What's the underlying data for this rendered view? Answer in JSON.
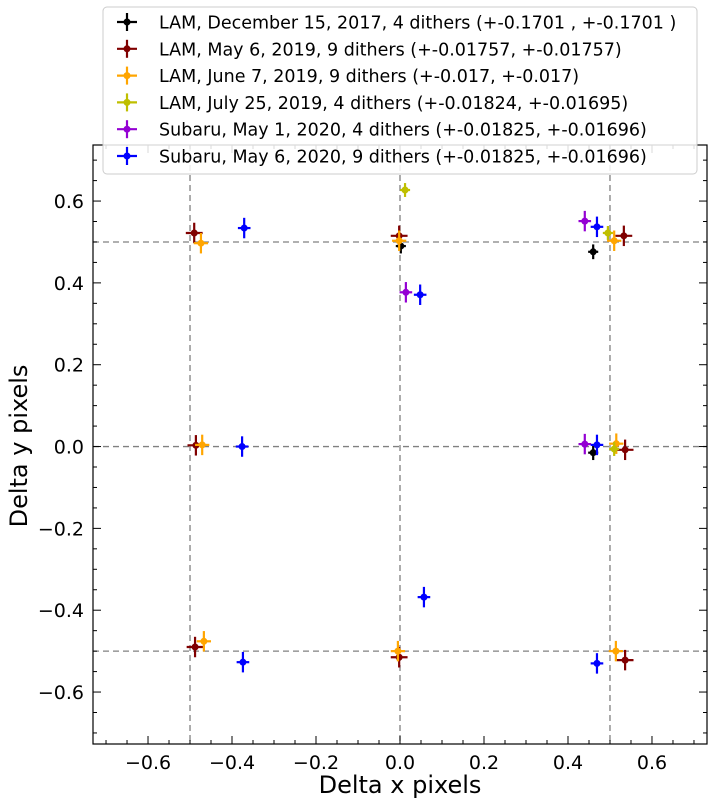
{
  "chart_data": {
    "type": "scatter",
    "xlabel": "Delta x pixels",
    "ylabel": "Delta y pixels",
    "xlim": [
      -0.731,
      0.731
    ],
    "ylim": [
      -0.727,
      0.737
    ],
    "xticks": [
      -0.6,
      -0.4,
      -0.2,
      0.0,
      0.2,
      0.4,
      0.6
    ],
    "yticks": [
      -0.6,
      -0.4,
      -0.2,
      0.0,
      0.2,
      0.4,
      0.6
    ],
    "xtick_labels": [
      "−0.6",
      "−0.4",
      "−0.2",
      "0.0",
      "0.2",
      "0.4",
      "0.6"
    ],
    "ytick_labels": [
      "−0.6",
      "−0.4",
      "−0.2",
      "0.0",
      "0.2",
      "0.4",
      "0.6"
    ],
    "reference_lines": {
      "x": [
        -0.5,
        0,
        0.5
      ],
      "y": [
        -0.5,
        0,
        0.5
      ]
    },
    "legend_position": "top",
    "series": [
      {
        "name": "LAM, December 15, 2017, 4 dithers (+-0.1701 , +-0.1701 )",
        "color": "#000000",
        "xerr": 0.012,
        "yerr": 0.018,
        "points": [
          [
            0.002,
            0.49
          ],
          [
            0.46,
            0.476
          ],
          [
            0.46,
            -0.015
          ]
        ]
      },
      {
        "name": "LAM, May 6, 2019, 9 dithers (+-0.01757, +-0.01757)",
        "color": "#800000",
        "xerr": 0.02,
        "yerr": 0.025,
        "points": [
          [
            -0.49,
            0.522
          ],
          [
            -0.002,
            0.515
          ],
          [
            0.533,
            0.515
          ],
          [
            -0.486,
            0.003
          ],
          [
            0.536,
            -0.008
          ],
          [
            -0.488,
            -0.49
          ],
          [
            -0.002,
            -0.515
          ],
          [
            0.536,
            -0.522
          ]
        ]
      },
      {
        "name": "LAM, June 7, 2019, 9 dithers (+-0.017, +-0.017)",
        "color": "#ffa500",
        "xerr": 0.017,
        "yerr": 0.025,
        "points": [
          [
            -0.474,
            0.497
          ],
          [
            -0.002,
            0.503
          ],
          [
            0.51,
            0.503
          ],
          [
            -0.471,
            0.004
          ],
          [
            0.515,
            0.007
          ],
          [
            -0.467,
            -0.476
          ],
          [
            -0.005,
            -0.5
          ],
          [
            0.514,
            -0.5
          ]
        ]
      },
      {
        "name": "LAM, July 25, 2019, 4 dithers (+-0.01824, +-0.01695)",
        "color": "#bfbf00",
        "xerr": 0.012,
        "yerr": 0.017,
        "points": [
          [
            0.012,
            0.627
          ],
          [
            0.495,
            0.522
          ],
          [
            0.51,
            -0.006
          ]
        ]
      },
      {
        "name": "Subaru, May 1, 2020, 4 dithers (+-0.01825, +-0.01696)",
        "color": "#9400d3",
        "xerr": 0.015,
        "yerr": 0.025,
        "points": [
          [
            0.014,
            0.377
          ],
          [
            0.44,
            0.551
          ],
          [
            0.44,
            0.006
          ]
        ]
      },
      {
        "name": "Subaru, May 6, 2020, 9 dithers (+-0.01825, +-0.01696)",
        "color": "#0000ff",
        "xerr": 0.015,
        "yerr": 0.025,
        "points": [
          [
            -0.371,
            0.534
          ],
          [
            0.048,
            0.371
          ],
          [
            0.469,
            0.537
          ],
          [
            -0.376,
            0.0
          ],
          [
            0.469,
            0.004
          ],
          [
            0.057,
            -0.368
          ],
          [
            -0.374,
            -0.527
          ],
          [
            0.469,
            -0.53
          ]
        ]
      }
    ]
  }
}
